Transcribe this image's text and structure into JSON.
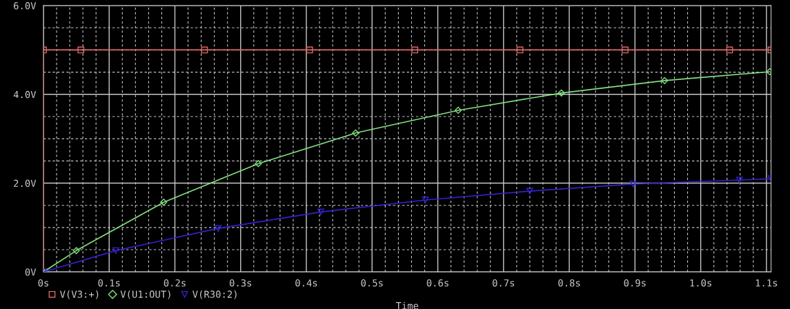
{
  "chart_data": {
    "type": "line",
    "xlabel": "Time",
    "xlim": [
      0,
      1.107
    ],
    "ylim": [
      0,
      6
    ],
    "xticks": [
      {
        "value": 0,
        "label": "0s"
      },
      {
        "value": 0.1,
        "label": "0.1s"
      },
      {
        "value": 0.2,
        "label": "0.2s"
      },
      {
        "value": 0.3,
        "label": "0.3s"
      },
      {
        "value": 0.4,
        "label": "0.4s"
      },
      {
        "value": 0.5,
        "label": "0.5s"
      },
      {
        "value": 0.6,
        "label": "0.6s"
      },
      {
        "value": 0.7,
        "label": "0.7s"
      },
      {
        "value": 0.8,
        "label": "0.8s"
      },
      {
        "value": 0.9,
        "label": "0.9s"
      },
      {
        "value": 1.0,
        "label": "1.0s"
      },
      {
        "value": 1.1,
        "label": "1.1s"
      }
    ],
    "yticks": [
      {
        "value": 0,
        "label": "0V"
      },
      {
        "value": 2,
        "label": "2.0V"
      },
      {
        "value": 4,
        "label": "4.0V"
      },
      {
        "value": 6,
        "label": "6.0V"
      }
    ],
    "grid": true,
    "legend": "bottom left",
    "line_style": "solid",
    "series": [
      {
        "name": "V(V3:+)",
        "color": "#e06666",
        "marker": "square",
        "x": [
          0,
          0,
          0.057,
          0.245,
          0.405,
          0.565,
          0.725,
          0.885,
          1.044,
          1.107
        ],
        "values": [
          0,
          5,
          5,
          5,
          5,
          5,
          5,
          5,
          5,
          5
        ]
      },
      {
        "name": "V(U1:OUT)",
        "color": "#80e080",
        "marker": "diamond",
        "x": [
          0,
          0.05,
          0.183,
          0.327,
          0.475,
          0.631,
          0.788,
          0.945,
          1.105
        ],
        "values": [
          0,
          0.48,
          1.57,
          2.44,
          3.13,
          3.64,
          4.03,
          4.31,
          4.51
        ]
      },
      {
        "name": "V(R30:2)",
        "color": "#3322cc",
        "marker": "triangle",
        "x": [
          0,
          0.11,
          0.266,
          0.422,
          0.581,
          0.74,
          0.897,
          1.059,
          1.107
        ],
        "values": [
          0,
          0.48,
          0.98,
          1.35,
          1.62,
          1.82,
          1.98,
          2.07,
          2.1
        ]
      }
    ]
  }
}
